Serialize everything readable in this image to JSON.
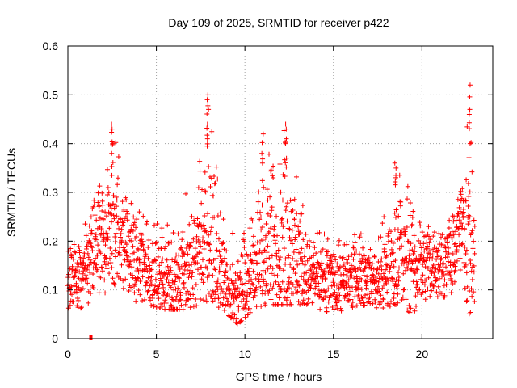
{
  "chart_data": {
    "type": "scatter",
    "title": "Day 109 of 2025, SRMTID for receiver p422",
    "xlabel": "GPS time / hours",
    "ylabel": "SRMTID / TECUs",
    "xlim": [
      0,
      24
    ],
    "ylim": [
      0,
      0.6
    ],
    "xticks": [
      0,
      5,
      10,
      15,
      20
    ],
    "xtick_labels": [
      "0",
      "5",
      "10",
      "15",
      "20"
    ],
    "yticks": [
      0,
      0.1,
      0.2,
      0.3,
      0.4,
      0.5,
      0.6
    ],
    "ytick_labels": [
      "0",
      "0.1",
      "0.2",
      "0.3",
      "0.4",
      "0.5",
      "0.6"
    ],
    "grid": true,
    "marker": "+",
    "color": "#ff0000",
    "note": "Dense scatter of roughly 2000+ points; envelope values below estimated from the figure",
    "envelope": [
      {
        "x": 0.0,
        "low": 0.04,
        "typical": 0.12,
        "high": 0.19
      },
      {
        "x": 1.0,
        "low": 0.07,
        "typical": 0.13,
        "high": 0.24
      },
      {
        "x": 2.0,
        "low": 0.09,
        "typical": 0.2,
        "high": 0.35
      },
      {
        "x": 2.5,
        "low": 0.1,
        "typical": 0.24,
        "high": 0.43
      },
      {
        "x": 3.5,
        "low": 0.08,
        "typical": 0.18,
        "high": 0.3
      },
      {
        "x": 4.5,
        "low": 0.07,
        "typical": 0.14,
        "high": 0.25
      },
      {
        "x": 5.5,
        "low": 0.06,
        "typical": 0.11,
        "high": 0.24
      },
      {
        "x": 6.5,
        "low": 0.06,
        "typical": 0.12,
        "high": 0.28
      },
      {
        "x": 7.5,
        "low": 0.07,
        "typical": 0.19,
        "high": 0.4
      },
      {
        "x": 8.0,
        "low": 0.08,
        "typical": 0.22,
        "high": 0.5
      },
      {
        "x": 9.0,
        "low": 0.05,
        "typical": 0.11,
        "high": 0.24
      },
      {
        "x": 9.6,
        "low": 0.03,
        "typical": 0.07,
        "high": 0.2
      },
      {
        "x": 10.5,
        "low": 0.06,
        "typical": 0.14,
        "high": 0.28
      },
      {
        "x": 11.2,
        "low": 0.07,
        "typical": 0.17,
        "high": 0.42
      },
      {
        "x": 12.3,
        "low": 0.07,
        "typical": 0.19,
        "high": 0.44
      },
      {
        "x": 13.5,
        "low": 0.07,
        "typical": 0.13,
        "high": 0.25
      },
      {
        "x": 15.0,
        "low": 0.05,
        "typical": 0.11,
        "high": 0.2
      },
      {
        "x": 16.5,
        "low": 0.07,
        "typical": 0.13,
        "high": 0.22
      },
      {
        "x": 17.5,
        "low": 0.06,
        "typical": 0.11,
        "high": 0.2
      },
      {
        "x": 18.5,
        "low": 0.07,
        "typical": 0.15,
        "high": 0.36
      },
      {
        "x": 19.5,
        "low": 0.05,
        "typical": 0.15,
        "high": 0.3
      },
      {
        "x": 20.5,
        "low": 0.07,
        "typical": 0.15,
        "high": 0.25
      },
      {
        "x": 21.5,
        "low": 0.08,
        "typical": 0.16,
        "high": 0.25
      },
      {
        "x": 22.3,
        "low": 0.12,
        "typical": 0.25,
        "high": 0.31
      },
      {
        "x": 22.7,
        "low": 0.04,
        "typical": 0.2,
        "high": 0.52
      },
      {
        "x": 23.0,
        "low": 0.04,
        "typical": 0.16,
        "high": 0.25
      }
    ],
    "spikes": [
      {
        "x": 2.5,
        "values": [
          0.38,
          0.4,
          0.43,
          0.44
        ]
      },
      {
        "x": 7.9,
        "values": [
          0.41,
          0.44,
          0.47,
          0.49,
          0.5
        ]
      },
      {
        "x": 11.0,
        "values": [
          0.36,
          0.38,
          0.42
        ]
      },
      {
        "x": 12.3,
        "values": [
          0.37,
          0.4,
          0.43,
          0.44
        ]
      },
      {
        "x": 18.5,
        "values": [
          0.33,
          0.35,
          0.36
        ]
      },
      {
        "x": 22.7,
        "values": [
          0.4,
          0.46,
          0.47,
          0.52
        ]
      }
    ],
    "outliers": [
      {
        "x": 1.3,
        "y": 0.0
      }
    ]
  }
}
